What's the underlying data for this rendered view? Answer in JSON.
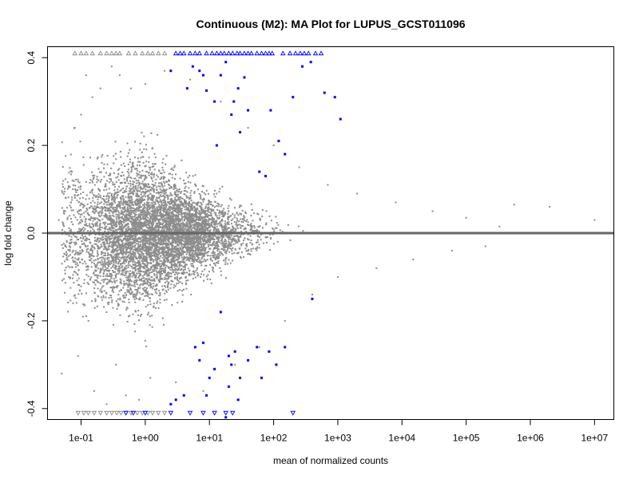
{
  "chart_data": {
    "type": "scatter",
    "title": "Continuous (M2): MA Plot for LUPUS_GCST011096",
    "xlabel": "mean of normalized counts",
    "ylabel": "log fold change",
    "x_scale": "log10",
    "xlim": [
      0.03,
      20000000
    ],
    "ylim": [
      -0.425,
      0.425
    ],
    "grid": false,
    "x_ticks": [
      {
        "value": 0.1,
        "label": "1e-01"
      },
      {
        "value": 1,
        "label": "1e+00"
      },
      {
        "value": 10,
        "label": "1e+01"
      },
      {
        "value": 100,
        "label": "1e+02"
      },
      {
        "value": 1000,
        "label": "1e+03"
      },
      {
        "value": 10000,
        "label": "1e+04"
      },
      {
        "value": 100000,
        "label": "1e+05"
      },
      {
        "value": 1000000,
        "label": "1e+06"
      },
      {
        "value": 10000000,
        "label": "1e+07"
      }
    ],
    "y_ticks": [
      {
        "value": 0.4,
        "label": "0.4"
      },
      {
        "value": 0.2,
        "label": "0.2"
      },
      {
        "value": 0.0,
        "label": "0.0"
      },
      {
        "value": -0.2,
        "label": "-0.2"
      },
      {
        "value": -0.4,
        "label": "-0.4"
      }
    ],
    "reference_line": {
      "y": 0,
      "color": "#666666"
    },
    "colors": {
      "nonsignificant": "#8c8c8c",
      "significant": "#0000ff"
    },
    "series": [
      {
        "role": "nonsignificant-points",
        "note_density": "dense cloud of several thousand grey points, widest spread between 1e-01 and 1e+02, narrowing toward 1e+05",
        "points": [
          [
            0.045,
            0.03
          ],
          [
            0.05,
            -0.32
          ],
          [
            0.06,
            -0.02
          ],
          [
            0.07,
            0.07
          ],
          [
            0.075,
            -0.16
          ],
          [
            0.08,
            0.24
          ],
          [
            0.09,
            -0.28
          ],
          [
            0.1,
            0.27
          ],
          [
            0.12,
            0.36
          ],
          [
            0.13,
            -0.2
          ],
          [
            0.15,
            0.31
          ],
          [
            0.16,
            -0.36
          ],
          [
            0.2,
            0.33
          ],
          [
            0.25,
            -0.39
          ],
          [
            0.3,
            0.38
          ],
          [
            0.35,
            -0.3
          ],
          [
            0.4,
            0.36
          ],
          [
            0.5,
            -0.37
          ],
          [
            0.6,
            0.33
          ],
          [
            0.8,
            -0.38
          ],
          [
            1.0,
            0.34
          ],
          [
            1.2,
            -0.33
          ],
          [
            2.0,
            0.37
          ],
          [
            3.0,
            -0.34
          ],
          [
            5.0,
            0.35
          ],
          [
            8.0,
            -0.36
          ],
          [
            15.0,
            0.3
          ],
          [
            25.0,
            -0.3
          ],
          [
            40.0,
            0.24
          ],
          [
            60.0,
            -0.26
          ],
          [
            100.0,
            0.2
          ],
          [
            150.0,
            -0.2
          ],
          [
            250.0,
            0.15
          ],
          [
            400.0,
            -0.14
          ],
          [
            700.0,
            0.11
          ],
          [
            1000.0,
            -0.1
          ],
          [
            2000.0,
            0.09
          ],
          [
            4000.0,
            -0.08
          ],
          [
            8000.0,
            0.07
          ],
          [
            15000.0,
            -0.06
          ],
          [
            30000.0,
            0.05
          ],
          [
            60000.0,
            -0.04
          ],
          [
            100000.0,
            0.035
          ],
          [
            200000.0,
            -0.03
          ],
          [
            330000.0,
            0.015
          ],
          [
            560000.0,
            0.065
          ],
          [
            2000000.0,
            0.06
          ],
          [
            10000000.0,
            0.03
          ]
        ]
      },
      {
        "role": "significant-points",
        "points": [
          [
            2.5,
            0.37
          ],
          [
            4.5,
            0.33
          ],
          [
            5.5,
            0.38
          ],
          [
            7.0,
            0.37
          ],
          [
            8.0,
            0.36
          ],
          [
            9.0,
            0.325
          ],
          [
            12.0,
            0.3
          ],
          [
            15.0,
            0.36
          ],
          [
            18.0,
            0.39
          ],
          [
            22.0,
            0.27
          ],
          [
            24.0,
            0.3
          ],
          [
            28.0,
            0.33
          ],
          [
            35.0,
            0.355
          ],
          [
            40.0,
            0.28
          ],
          [
            60.0,
            0.14
          ],
          [
            75.0,
            0.13
          ],
          [
            90.0,
            0.28
          ],
          [
            120.0,
            0.21
          ],
          [
            150.0,
            0.18
          ],
          [
            200.0,
            0.31
          ],
          [
            280.0,
            0.38
          ],
          [
            380.0,
            0.39
          ],
          [
            620.0,
            0.32
          ],
          [
            900.0,
            0.31
          ],
          [
            1100.0,
            0.26
          ],
          [
            13.0,
            0.2
          ],
          [
            30.0,
            0.23
          ],
          [
            2.5,
            -0.39
          ],
          [
            3.0,
            -0.38
          ],
          [
            4.0,
            -0.37
          ],
          [
            6.0,
            -0.26
          ],
          [
            7.0,
            -0.29
          ],
          [
            8.0,
            -0.25
          ],
          [
            9.0,
            -0.37
          ],
          [
            10.0,
            -0.33
          ],
          [
            12.0,
            -0.31
          ],
          [
            15.0,
            -0.18
          ],
          [
            18.0,
            -0.42
          ],
          [
            20.0,
            -0.28
          ],
          [
            22.0,
            -0.3
          ],
          [
            25.0,
            -0.27
          ],
          [
            28.0,
            -0.38
          ],
          [
            30.0,
            -0.33
          ],
          [
            40.0,
            -0.29
          ],
          [
            55.0,
            -0.26
          ],
          [
            65.0,
            -0.33
          ],
          [
            85.0,
            -0.27
          ],
          [
            110.0,
            -0.3
          ],
          [
            150.0,
            -0.26
          ],
          [
            400.0,
            -0.15
          ],
          [
            20.0,
            -0.35
          ]
        ]
      },
      {
        "role": "clipped-up-triangles-grey",
        "y": 0.41,
        "points": [
          0.08,
          0.1,
          0.12,
          0.15,
          0.2,
          0.25,
          0.3,
          0.35,
          0.4,
          0.55,
          0.7,
          0.9,
          1.1,
          1.3,
          1.6,
          2.0
        ]
      },
      {
        "role": "clipped-up-triangles-blue",
        "y": 0.41,
        "points": [
          3.0,
          3.5,
          4.0,
          5.0,
          6.0,
          7.0,
          9.0,
          11.0,
          13.0,
          15.0,
          17.0,
          20.0,
          23.0,
          27.0,
          30.0,
          35.0,
          40.0,
          45.0,
          55.0,
          65.0,
          75.0,
          85.0,
          95.0,
          140.0,
          180.0,
          220.0,
          260.0,
          300.0,
          350.0,
          450.0,
          550.0
        ]
      },
      {
        "role": "clipped-down-triangles-grey",
        "y": -0.41,
        "points": [
          0.09,
          0.11,
          0.13,
          0.16,
          0.2,
          0.25,
          0.3,
          0.36,
          0.42,
          0.5,
          0.6,
          0.75,
          0.9,
          1.1,
          1.3,
          1.6,
          2.0
        ]
      },
      {
        "role": "clipped-down-triangles-blue",
        "y": -0.41,
        "points": [
          0.5,
          0.65,
          1.0,
          2.5,
          5.0,
          8.0,
          12.0,
          18.0,
          23.0,
          200.0
        ]
      }
    ]
  }
}
